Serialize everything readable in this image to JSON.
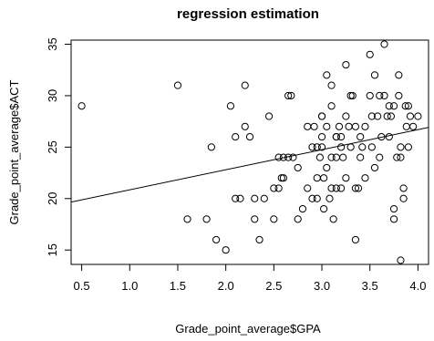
{
  "chart_data": {
    "type": "scatter",
    "title": "regression estimation",
    "xlabel": "Grade_point_average$GPA",
    "ylabel": "Grade_point_average$ACT",
    "xlim": [
      0.39,
      4.11
    ],
    "ylim": [
      13.6,
      35.4
    ],
    "x_ticks": [
      "0.5",
      "1.0",
      "1.5",
      "2.0",
      "2.5",
      "3.0",
      "3.5",
      "4.0"
    ],
    "y_ticks": [
      "15",
      "20",
      "25",
      "30",
      "35"
    ],
    "grid": false,
    "legend": "none",
    "colors": {
      "points": "#000000",
      "line": "#000000",
      "background": "#ffffff"
    },
    "regression_line": {
      "intercept": 18.9,
      "slope": 1.95
    },
    "points": [
      [
        0.5,
        29
      ],
      [
        1.5,
        31
      ],
      [
        1.6,
        18
      ],
      [
        1.8,
        18
      ],
      [
        1.85,
        25
      ],
      [
        1.9,
        16
      ],
      [
        2.0,
        15
      ],
      [
        2.05,
        29
      ],
      [
        2.1,
        26
      ],
      [
        2.1,
        20
      ],
      [
        2.15,
        20
      ],
      [
        2.2,
        31
      ],
      [
        2.2,
        27
      ],
      [
        2.25,
        26
      ],
      [
        2.3,
        20
      ],
      [
        2.3,
        18
      ],
      [
        2.35,
        16
      ],
      [
        2.4,
        20
      ],
      [
        2.45,
        28
      ],
      [
        2.5,
        18
      ],
      [
        2.5,
        21
      ],
      [
        2.55,
        21
      ],
      [
        2.55,
        24
      ],
      [
        2.58,
        22
      ],
      [
        2.6,
        24
      ],
      [
        2.6,
        22
      ],
      [
        2.65,
        24
      ],
      [
        2.65,
        30
      ],
      [
        2.68,
        30
      ],
      [
        2.7,
        24
      ],
      [
        2.75,
        18
      ],
      [
        2.75,
        23
      ],
      [
        2.8,
        19
      ],
      [
        2.85,
        21
      ],
      [
        2.9,
        25
      ],
      [
        2.9,
        20
      ],
      [
        2.92,
        27
      ],
      [
        2.95,
        22
      ],
      [
        2.95,
        20
      ],
      [
        2.95,
        25
      ],
      [
        2.98,
        24
      ],
      [
        3.0,
        28
      ],
      [
        3.0,
        25
      ],
      [
        3.0,
        26
      ],
      [
        3.0,
        28
      ],
      [
        3.02,
        19
      ],
      [
        3.02,
        22
      ],
      [
        3.05,
        32
      ],
      [
        3.05,
        27
      ],
      [
        3.05,
        23
      ],
      [
        3.08,
        20
      ],
      [
        3.1,
        31
      ],
      [
        3.1,
        21
      ],
      [
        3.1,
        24
      ],
      [
        3.12,
        18
      ],
      [
        3.15,
        21
      ],
      [
        3.15,
        26
      ],
      [
        3.15,
        24
      ],
      [
        3.18,
        27
      ],
      [
        3.2,
        21
      ],
      [
        3.2,
        25
      ],
      [
        3.2,
        26
      ],
      [
        3.22,
        24
      ],
      [
        3.25,
        33
      ],
      [
        3.25,
        22
      ],
      [
        3.28,
        27
      ],
      [
        3.3,
        30
      ],
      [
        3.3,
        25
      ],
      [
        3.32,
        30
      ],
      [
        3.35,
        27
      ],
      [
        3.35,
        21
      ],
      [
        3.35,
        16
      ],
      [
        3.38,
        21
      ],
      [
        3.4,
        24
      ],
      [
        3.4,
        26
      ],
      [
        3.42,
        25
      ],
      [
        3.45,
        22
      ],
      [
        3.45,
        27
      ],
      [
        3.5,
        34
      ],
      [
        3.5,
        30
      ],
      [
        3.52,
        25
      ],
      [
        3.52,
        28
      ],
      [
        3.55,
        32
      ],
      [
        3.58,
        28
      ],
      [
        3.6,
        30
      ],
      [
        3.62,
        26
      ],
      [
        3.65,
        35
      ],
      [
        3.65,
        30
      ],
      [
        3.68,
        28
      ],
      [
        3.7,
        29
      ],
      [
        3.72,
        28
      ],
      [
        3.75,
        29
      ],
      [
        3.75,
        19
      ],
      [
        3.75,
        18
      ],
      [
        3.78,
        24
      ],
      [
        3.8,
        30
      ],
      [
        3.8,
        32
      ],
      [
        3.82,
        25
      ],
      [
        3.82,
        24
      ],
      [
        3.82,
        14
      ],
      [
        3.85,
        21
      ],
      [
        3.85,
        20
      ],
      [
        3.87,
        29
      ],
      [
        3.88,
        27
      ],
      [
        3.9,
        29
      ],
      [
        3.9,
        25
      ],
      [
        3.92,
        28
      ],
      [
        3.95,
        27
      ],
      [
        4.0,
        28
      ],
      [
        3.55,
        23
      ],
      [
        3.6,
        24
      ],
      [
        3.7,
        26
      ],
      [
        3.1,
        29
      ],
      [
        3.15,
        26
      ],
      [
        2.85,
        27
      ],
      [
        3.25,
        28
      ]
    ]
  }
}
